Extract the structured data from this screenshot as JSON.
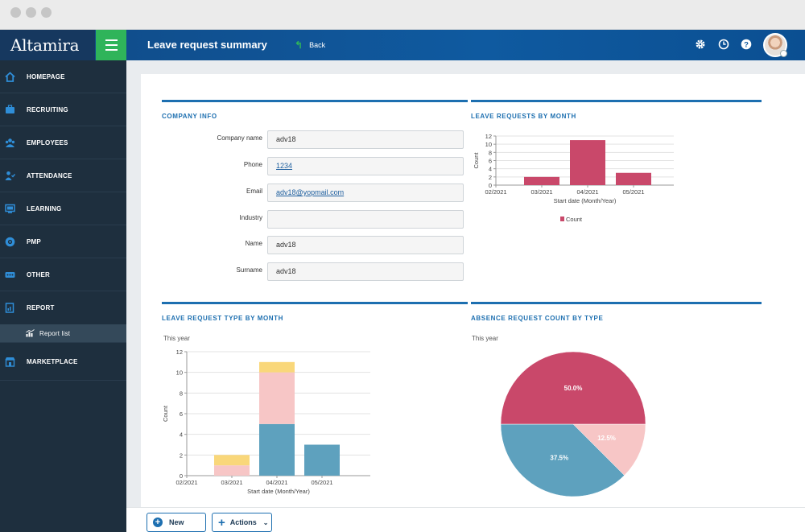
{
  "app": {
    "logo": "Altamira",
    "title": "Leave request summary",
    "back_label": "Back"
  },
  "header_icons": [
    "gear-icon",
    "clock-icon",
    "help-icon"
  ],
  "sidebar": {
    "items": [
      {
        "label": "HOMEPAGE",
        "icon": "home-icon"
      },
      {
        "label": "RECRUITING",
        "icon": "recruiting-icon"
      },
      {
        "label": "EMPLOYEES",
        "icon": "employees-icon"
      },
      {
        "label": "ATTENDANCE",
        "icon": "attendance-icon"
      },
      {
        "label": "LEARNING",
        "icon": "learning-icon"
      },
      {
        "label": "PMP",
        "icon": "pmp-icon"
      },
      {
        "label": "OTHER",
        "icon": "other-icon"
      },
      {
        "label": "REPORT",
        "icon": "report-icon"
      }
    ],
    "sub_item": {
      "label": "Report list",
      "icon": "bar-chart-icon"
    },
    "marketplace": {
      "label": "MARKETPLACE",
      "icon": "marketplace-icon"
    }
  },
  "company_info": {
    "title": "COMPANY INFO",
    "fields": [
      {
        "label": "Company name",
        "value": "adv18"
      },
      {
        "label": "Phone",
        "value": "1234"
      },
      {
        "label": "Email",
        "value": "adv18@yopmail.com"
      },
      {
        "label": "Industry",
        "value": ""
      },
      {
        "label": "Name",
        "value": "adv18"
      },
      {
        "label": "Surname",
        "value": "adv18"
      }
    ]
  },
  "sections": {
    "leave_by_month": "LEAVE REQUESTS BY MONTH",
    "leave_type_by_month": "LEAVE REQUEST TYPE BY MONTH",
    "absence_count_by_type": "ABSENCE REQUEST COUNT BY TYPE",
    "this_year": "This year"
  },
  "toolbar": {
    "new_label": "New",
    "actions_label": "Actions"
  },
  "colors": {
    "primary": "#1d6fb0",
    "green": "#2fb45a",
    "crimson": "#c9486a",
    "teal": "#5ea1be",
    "pink": "#f7c6c6",
    "yellow": "#f9d77a"
  },
  "chart_data": [
    {
      "type": "bar",
      "categories": [
        "02/2021",
        "03/2021",
        "04/2021",
        "05/2021"
      ],
      "series": [
        {
          "name": "Count",
          "values": [
            0,
            2,
            11,
            3
          ]
        }
      ],
      "xlabel": "Start date (Month/Year)",
      "ylabel": "Count",
      "ylim": [
        0,
        12
      ],
      "yticks": [
        0,
        2,
        4,
        6,
        8,
        10,
        12
      ],
      "grid": true,
      "legend": "bottom"
    },
    {
      "type": "bar",
      "stacked": true,
      "categories": [
        "02/2021",
        "03/2021",
        "04/2021",
        "05/2021"
      ],
      "series": [
        {
          "values": [
            0,
            0,
            5,
            3
          ],
          "color": "#5ea1be"
        },
        {
          "values": [
            0,
            1,
            5,
            0
          ],
          "color": "#f7c6c6"
        },
        {
          "values": [
            0,
            1,
            1,
            0
          ],
          "color": "#f9d77a"
        }
      ],
      "xlabel": "Start date (Month/Year)",
      "ylabel": "Count",
      "ylim": [
        0,
        12
      ],
      "yticks": [
        0,
        2,
        4,
        6,
        8,
        10,
        12
      ],
      "grid": true
    },
    {
      "type": "pie",
      "slices": [
        {
          "value": 37.5,
          "label": "37.5%",
          "color": "#5ea1be"
        },
        {
          "value": 12.5,
          "label": "12.5%",
          "color": "#f7c6c6"
        },
        {
          "value": 50.0,
          "label": "50.0%",
          "color": "#c9486a"
        }
      ]
    }
  ]
}
